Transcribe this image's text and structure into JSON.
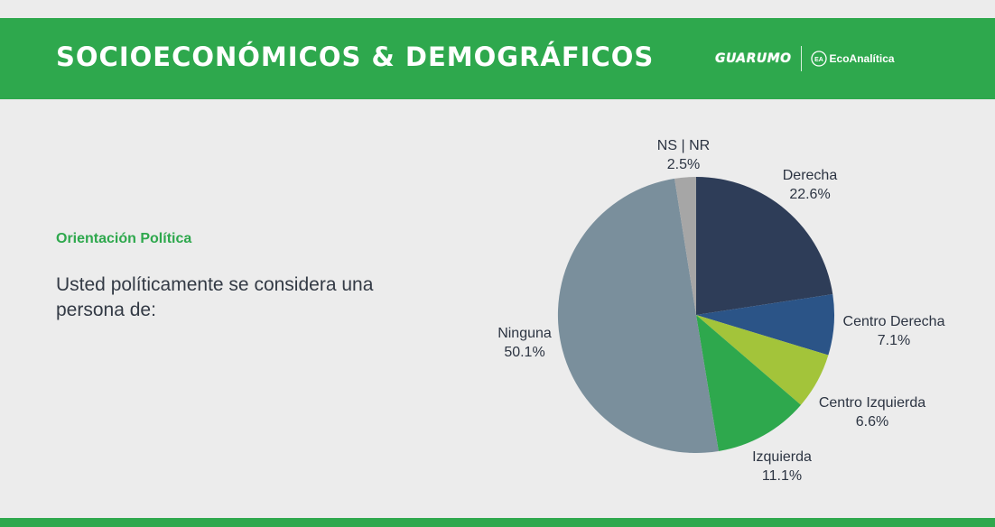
{
  "header": {
    "title": "SOCIOECONÓMICOS & DEMOGRÁFICOS",
    "logo_primary": "GUARUMO",
    "logo_secondary": "EcoAnalítica",
    "logo_secondary_mark": "EA"
  },
  "content": {
    "subtitle": "Orientación Política",
    "question": "Usted políticamente se considera una persona de:"
  },
  "colors": {
    "brand_green": "#2ea84d",
    "background": "#ececec"
  },
  "chart_data": {
    "type": "pie",
    "title": "Orientación Política",
    "start_angle_deg": 0,
    "direction": "clockwise",
    "slices": [
      {
        "label": "Derecha",
        "value": 22.6,
        "display": "22.6%",
        "color": "#2e3d58"
      },
      {
        "label": "Centro Derecha",
        "value": 7.1,
        "display": "7.1%",
        "color": "#2b5487"
      },
      {
        "label": "Centro Izquierda",
        "value": 6.6,
        "display": "6.6%",
        "color": "#a3c43a"
      },
      {
        "label": "Izquierda",
        "value": 11.1,
        "display": "11.1%",
        "color": "#2ea84d"
      },
      {
        "label": "Ninguna",
        "value": 50.1,
        "display": "50.1%",
        "color": "#7a8f9c"
      },
      {
        "label": "NS | NR",
        "value": 2.5,
        "display": "2.5%",
        "color": "#a6a6a6"
      }
    ]
  }
}
